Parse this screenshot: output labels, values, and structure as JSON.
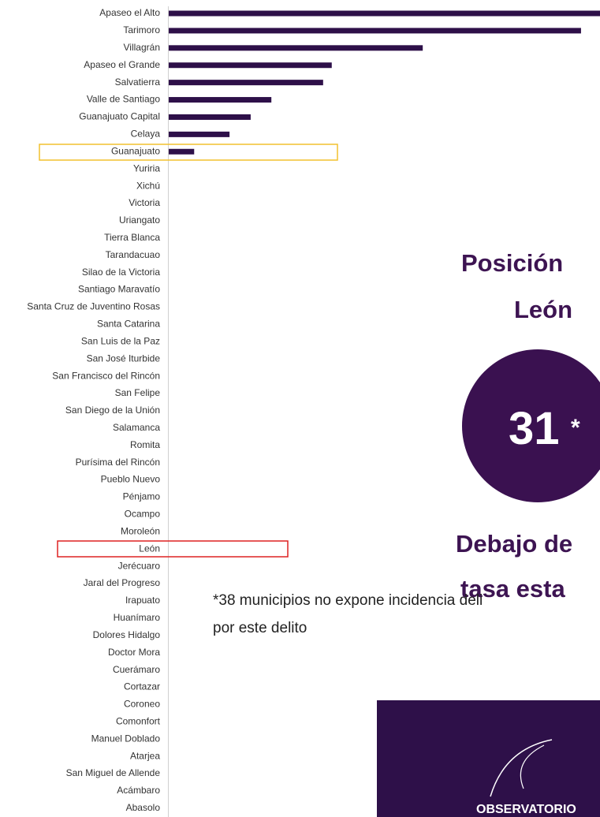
{
  "chart_data": {
    "type": "bar",
    "orientation": "horizontal",
    "categories": [
      "Apaseo el Alto",
      "Tarimoro",
      "Villagrán",
      "Apaseo el Grande",
      "Salvatierra",
      "Valle de Santiago",
      "Guanajuato Capital",
      "Celaya",
      "Guanajuato",
      "Yuriria",
      "Xichú",
      "Victoria",
      "Uriangato",
      "Tierra Blanca",
      "Tarandacuao",
      "Silao de la Victoria",
      "Santiago Maravatío",
      "Santa Cruz de Juventino Rosas",
      "Santa Catarina",
      "San Luis de la Paz",
      "San José Iturbide",
      "San Francisco del Rincón",
      "San Felipe",
      "San Diego de la Unión",
      "Salamanca",
      "Romita",
      "Purísima del Rincón",
      "Pueblo Nuevo",
      "Pénjamo",
      "Ocampo",
      "Moroleón",
      "León",
      "Jerécuaro",
      "Jaral del Progreso",
      "Irapuato",
      "Huanímaro",
      "Dolores Hidalgo",
      "Doctor Mora",
      "Cuerámaro",
      "Cortazar",
      "Coroneo",
      "Comonfort",
      "Manuel Doblado",
      "Atarjea",
      "San Miguel de Allende",
      "Acámbaro",
      "Abasolo"
    ],
    "values": [
      100,
      95.6,
      58.9,
      37.8,
      35.8,
      23.8,
      19.0,
      14.1,
      5.9,
      0,
      0,
      0,
      0,
      0,
      0,
      0,
      0,
      0,
      0,
      0,
      0,
      0,
      0,
      0,
      0,
      0,
      0,
      0,
      0,
      0,
      0,
      0,
      0,
      0,
      0,
      0,
      0,
      0,
      0,
      0,
      0,
      0,
      0,
      0,
      0,
      0,
      0
    ],
    "xlim": [
      0,
      100
    ],
    "color": "#2e1049",
    "annotations": {
      "position_title": "Posición",
      "position_place": "León",
      "rank": "31",
      "rank_mark": "*",
      "below_1": "Debajo de",
      "below_2": "tasa esta",
      "footnote_1": "*38 municipios no expone incidencia deli",
      "footnote_2": "por este delito",
      "logo": "OBSERVATORIO"
    }
  }
}
